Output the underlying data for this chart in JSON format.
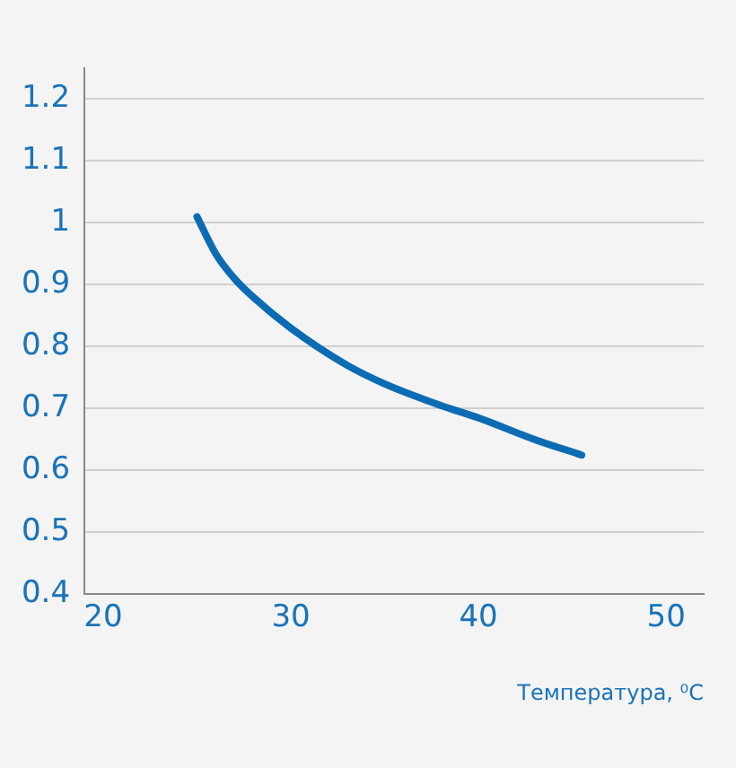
{
  "chart_data": {
    "type": "line",
    "xlabel": "Температура, ⁰C",
    "x": [
      25,
      26,
      27,
      28,
      30,
      33,
      35,
      38,
      40,
      43,
      45.5
    ],
    "series": [
      {
        "color": "#0b6cb4",
        "values": [
          1.01,
          0.95,
          0.91,
          0.88,
          0.83,
          0.77,
          0.74,
          0.705,
          0.685,
          0.65,
          0.625
        ]
      }
    ],
    "xlim": [
      19,
      52
    ],
    "xticks": [
      20,
      30,
      40,
      50
    ],
    "ylim": [
      0.4,
      1.25
    ],
    "yticks": [
      0.4,
      0.5,
      0.6,
      0.7,
      0.8,
      0.9,
      1,
      1.1,
      1.2
    ],
    "grid": "y",
    "legend": false,
    "marker": "none",
    "line_style": "solid"
  }
}
